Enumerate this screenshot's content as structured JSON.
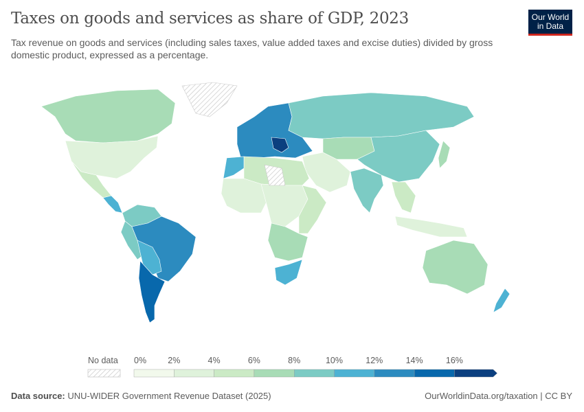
{
  "header": {
    "title": "Taxes on goods and services as share of GDP, 2023",
    "subtitle": "Tax revenue on goods and services (including sales taxes, value added taxes and excise duties) divided by gross domestic product, expressed as a percentage.",
    "logo": "Our World in Data"
  },
  "legend": {
    "no_data_label": "No data",
    "ticks": [
      "0%",
      "2%",
      "4%",
      "6%",
      "8%",
      "10%",
      "12%",
      "14%",
      "16%"
    ],
    "bin_colors": [
      "#f2f9ec",
      "#dff2db",
      "#cbeac5",
      "#a8dcb6",
      "#7ccbc4",
      "#4db2d3",
      "#2c8bbf",
      "#0868ac",
      "#0b3f7f"
    ],
    "no_data_color": "#e8e8e8"
  },
  "footer": {
    "source_label": "Data source:",
    "source": "UNU-WIDER Government Revenue Dataset (2025)",
    "link": "OurWorldinData.org/taxation | CC BY"
  },
  "map_regions": [
    {
      "name": "canada",
      "bin": 3
    },
    {
      "name": "usa",
      "bin": 1
    },
    {
      "name": "mexico",
      "bin": 2
    },
    {
      "name": "central-america",
      "bin": 5
    },
    {
      "name": "colombia-venezuela",
      "bin": 4
    },
    {
      "name": "peru",
      "bin": 4
    },
    {
      "name": "brazil",
      "bin": 6
    },
    {
      "name": "bolivia-paraguay",
      "bin": 5
    },
    {
      "name": "argentina-chile",
      "bin": 7
    },
    {
      "name": "greenland",
      "bin": -1
    },
    {
      "name": "europe",
      "bin": 6
    },
    {
      "name": "balkans",
      "bin": 8
    },
    {
      "name": "russia",
      "bin": 4
    },
    {
      "name": "central-asia",
      "bin": 3
    },
    {
      "name": "china",
      "bin": 4
    },
    {
      "name": "india",
      "bin": 4
    },
    {
      "name": "middle-east",
      "bin": 1
    },
    {
      "name": "north-africa",
      "bin": 2
    },
    {
      "name": "morocco",
      "bin": 5
    },
    {
      "name": "west-africa",
      "bin": 1
    },
    {
      "name": "central-africa",
      "bin": 1
    },
    {
      "name": "east-africa",
      "bin": 2
    },
    {
      "name": "southern-africa",
      "bin": 3
    },
    {
      "name": "south-africa",
      "bin": 5
    },
    {
      "name": "southeast-asia",
      "bin": 2
    },
    {
      "name": "indonesia",
      "bin": 1
    },
    {
      "name": "australia",
      "bin": 3
    },
    {
      "name": "new-zealand",
      "bin": 5
    },
    {
      "name": "japan",
      "bin": 3
    },
    {
      "name": "sahara-nodata",
      "bin": -1
    }
  ]
}
